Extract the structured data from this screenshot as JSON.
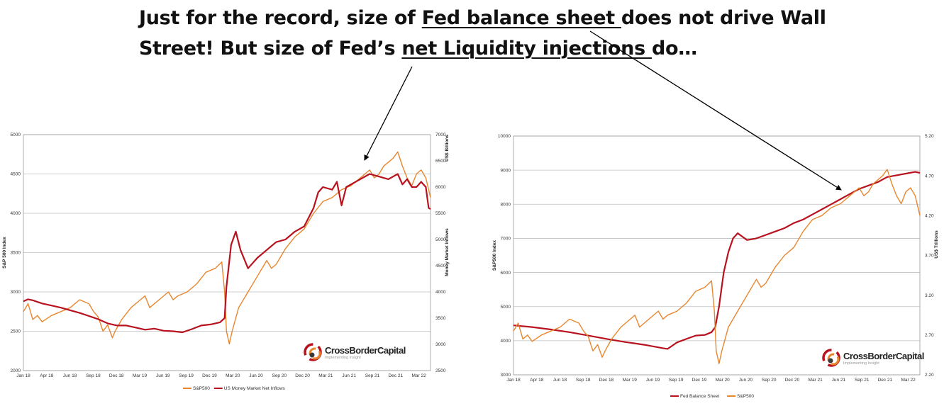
{
  "headline": {
    "line1_pre": "Just for the record, size of ",
    "line1_underlined": "Fed balance sheet ",
    "line1_post": "does not drive Wall",
    "line2_pre": "Street! But size of Fed’s ",
    "line2_underlined": "net Liquidity injections ",
    "line2_post": "do…"
  },
  "logo": {
    "brand": "CrossBorderCapital",
    "tagline": "Implementing Insight"
  },
  "colors": {
    "sp500": "#E8862E",
    "liquidity": "#B8121F",
    "grid": "#bfbfbf",
    "arrow": "#000000"
  },
  "chart_data": [
    {
      "type": "line",
      "title": "",
      "x_ticks": [
        "Jan 18",
        "Apr 18",
        "Jun 18",
        "Sep 18",
        "Dec 18",
        "Mar 19",
        "Jun 19",
        "Sep 19",
        "Dec 19",
        "Mar 20",
        "Jun 20",
        "Sep 20",
        "Dec 20",
        "Mar 21",
        "Jun 21",
        "Sep 21",
        "Dec 21",
        "Mar 22"
      ],
      "x_range": [
        2018.0,
        2022.35
      ],
      "y_left": {
        "label": "S&P 500 Index",
        "range": [
          2000,
          5000
        ],
        "ticks": [
          "2000",
          "2500",
          "3000",
          "3500",
          "4000",
          "4500",
          "5000"
        ]
      },
      "y_right": {
        "label": "US$ Billions",
        "label2": "Money Market Inflows",
        "range": [
          2500,
          7000
        ],
        "ticks": [
          "2500",
          "3000",
          "3500",
          "4000",
          "4500",
          "5000",
          "5500",
          "6000",
          "6500",
          "7000"
        ]
      },
      "grid": true,
      "legend_position": "bottom",
      "series": [
        {
          "name": "S&P500",
          "axis": "left",
          "color": "#E8862E",
          "x": [
            2018.0,
            2018.05,
            2018.1,
            2018.15,
            2018.2,
            2018.3,
            2018.4,
            2018.5,
            2018.6,
            2018.7,
            2018.75,
            2018.8,
            2018.85,
            2018.9,
            2018.95,
            2018.98,
            2019.05,
            2019.15,
            2019.25,
            2019.3,
            2019.35,
            2019.45,
            2019.55,
            2019.6,
            2019.65,
            2019.75,
            2019.85,
            2019.95,
            2020.05,
            2020.12,
            2020.15,
            2020.17,
            2020.2,
            2020.23,
            2020.3,
            2020.4,
            2020.5,
            2020.6,
            2020.65,
            2020.7,
            2020.75,
            2020.8,
            2020.9,
            2021.0,
            2021.1,
            2021.2,
            2021.3,
            2021.4,
            2021.5,
            2021.6,
            2021.7,
            2021.75,
            2021.8,
            2021.85,
            2021.9,
            2021.95,
            2022.0,
            2022.05,
            2022.1,
            2022.15,
            2022.2,
            2022.25,
            2022.3,
            2022.35
          ],
          "y": [
            2750,
            2850,
            2650,
            2700,
            2620,
            2700,
            2750,
            2800,
            2900,
            2850,
            2750,
            2680,
            2500,
            2580,
            2416,
            2500,
            2650,
            2800,
            2900,
            2950,
            2800,
            2900,
            3000,
            2900,
            2950,
            3000,
            3100,
            3250,
            3300,
            3380,
            3000,
            2500,
            2340,
            2500,
            2800,
            3000,
            3200,
            3400,
            3300,
            3350,
            3450,
            3550,
            3700,
            3800,
            4000,
            4150,
            4200,
            4300,
            4350,
            4450,
            4550,
            4450,
            4500,
            4600,
            4650,
            4700,
            4780,
            4600,
            4450,
            4350,
            4500,
            4550,
            4450,
            4200
          ]
        },
        {
          "name": "US Money Market Net Inflows",
          "axis": "right",
          "color": "#B8121F",
          "x": [
            2018.0,
            2018.05,
            2018.1,
            2018.2,
            2018.3,
            2018.4,
            2018.5,
            2018.6,
            2018.7,
            2018.8,
            2018.9,
            2019.0,
            2019.1,
            2019.2,
            2019.3,
            2019.4,
            2019.5,
            2019.6,
            2019.7,
            2019.8,
            2019.9,
            2020.0,
            2020.1,
            2020.15,
            2020.17,
            2020.22,
            2020.27,
            2020.32,
            2020.4,
            2020.45,
            2020.5,
            2020.6,
            2020.7,
            2020.8,
            2020.9,
            2021.0,
            2021.1,
            2021.15,
            2021.2,
            2021.3,
            2021.35,
            2021.4,
            2021.45,
            2021.5,
            2021.6,
            2021.7,
            2021.8,
            2021.9,
            2022.0,
            2022.05,
            2022.1,
            2022.15,
            2022.2,
            2022.25,
            2022.3,
            2022.33,
            2022.35
          ],
          "y": [
            3820,
            3860,
            3840,
            3780,
            3740,
            3700,
            3650,
            3600,
            3540,
            3480,
            3400,
            3360,
            3360,
            3320,
            3280,
            3300,
            3260,
            3250,
            3230,
            3290,
            3360,
            3380,
            3420,
            3500,
            4100,
            4900,
            5150,
            4800,
            4450,
            4550,
            4650,
            4800,
            4950,
            5000,
            5150,
            5250,
            5600,
            5900,
            6000,
            5950,
            6100,
            5650,
            6000,
            6050,
            6150,
            6250,
            6200,
            6150,
            6250,
            6050,
            6150,
            6000,
            6000,
            6100,
            6000,
            5600,
            5580
          ]
        }
      ]
    },
    {
      "type": "line",
      "title": "",
      "x_ticks": [
        "Jan 18",
        "Apr 18",
        "Jun 18",
        "Sep 18",
        "Dec 18",
        "Mar 19",
        "Jun 19",
        "Sep 19",
        "Dec 19",
        "Mar 20",
        "Jun 20",
        "Sep 20",
        "Dec 20",
        "Mar 21",
        "Jun 21",
        "Sep 21",
        "Dec 21",
        "Mar 22"
      ],
      "x_range": [
        2018.0,
        2022.35
      ],
      "y_left": {
        "label": "S&P500 Index",
        "range": [
          3000,
          10000
        ],
        "ticks": [
          "3000",
          "4000",
          "5000",
          "6000",
          "7000",
          "8000",
          "9000",
          "10000"
        ]
      },
      "y_right": {
        "label": "US$ Trillions",
        "range": [
          2.2,
          5.2
        ],
        "ticks": [
          "2.20",
          "2.70",
          "3.20",
          "3.70",
          "4.20",
          "4.70",
          "5.20"
        ]
      },
      "grid": true,
      "legend_position": "bottom",
      "series": [
        {
          "name": "Fed Balance Sheet",
          "axis": "left",
          "color": "#B8121F",
          "x": [
            2018.0,
            2018.2,
            2018.4,
            2018.6,
            2018.8,
            2019.0,
            2019.2,
            2019.4,
            2019.6,
            2019.65,
            2019.75,
            2019.85,
            2019.95,
            2020.05,
            2020.12,
            2020.16,
            2020.2,
            2020.25,
            2020.3,
            2020.35,
            2020.4,
            2020.45,
            2020.5,
            2020.6,
            2020.7,
            2020.8,
            2020.9,
            2021.0,
            2021.1,
            2021.2,
            2021.3,
            2021.4,
            2021.5,
            2021.6,
            2021.7,
            2021.8,
            2021.9,
            2022.0,
            2022.1,
            2022.2,
            2022.3,
            2022.35
          ],
          "y": [
            4450,
            4400,
            4330,
            4250,
            4150,
            4050,
            3960,
            3880,
            3780,
            3760,
            3950,
            4050,
            4150,
            4170,
            4250,
            4400,
            5000,
            6000,
            6600,
            7000,
            7150,
            7050,
            6950,
            7000,
            7100,
            7200,
            7300,
            7450,
            7550,
            7700,
            7850,
            8000,
            8150,
            8300,
            8450,
            8550,
            8650,
            8800,
            8850,
            8900,
            8950,
            8920
          ]
        },
        {
          "name": "S&P500",
          "axis": "right",
          "color": "#E8862E",
          "x": [
            2018.0,
            2018.05,
            2018.1,
            2018.15,
            2018.2,
            2018.3,
            2018.4,
            2018.5,
            2018.6,
            2018.7,
            2018.75,
            2018.8,
            2018.85,
            2018.9,
            2018.95,
            2018.98,
            2019.05,
            2019.15,
            2019.25,
            2019.3,
            2019.35,
            2019.45,
            2019.55,
            2019.6,
            2019.65,
            2019.75,
            2019.85,
            2019.95,
            2020.05,
            2020.12,
            2020.15,
            2020.17,
            2020.2,
            2020.23,
            2020.3,
            2020.4,
            2020.5,
            2020.6,
            2020.65,
            2020.7,
            2020.75,
            2020.8,
            2020.9,
            2021.0,
            2021.1,
            2021.2,
            2021.3,
            2021.4,
            2021.5,
            2021.6,
            2021.7,
            2021.75,
            2021.8,
            2021.85,
            2021.9,
            2021.95,
            2022.0,
            2022.05,
            2022.1,
            2022.15,
            2022.2,
            2022.25,
            2022.3,
            2022.35
          ],
          "y": [
            2.75,
            2.85,
            2.65,
            2.7,
            2.62,
            2.7,
            2.75,
            2.8,
            2.9,
            2.85,
            2.75,
            2.68,
            2.5,
            2.58,
            2.42,
            2.5,
            2.65,
            2.8,
            2.9,
            2.95,
            2.8,
            2.9,
            3.0,
            2.9,
            2.95,
            3.0,
            3.1,
            3.25,
            3.3,
            3.38,
            3.0,
            2.5,
            2.34,
            2.5,
            2.8,
            3.0,
            3.2,
            3.4,
            3.3,
            3.35,
            3.45,
            3.55,
            3.7,
            3.8,
            4.0,
            4.15,
            4.2,
            4.3,
            4.35,
            4.45,
            4.55,
            4.45,
            4.5,
            4.6,
            4.65,
            4.7,
            4.78,
            4.6,
            4.45,
            4.35,
            4.5,
            4.55,
            4.45,
            4.2
          ]
        }
      ]
    }
  ]
}
